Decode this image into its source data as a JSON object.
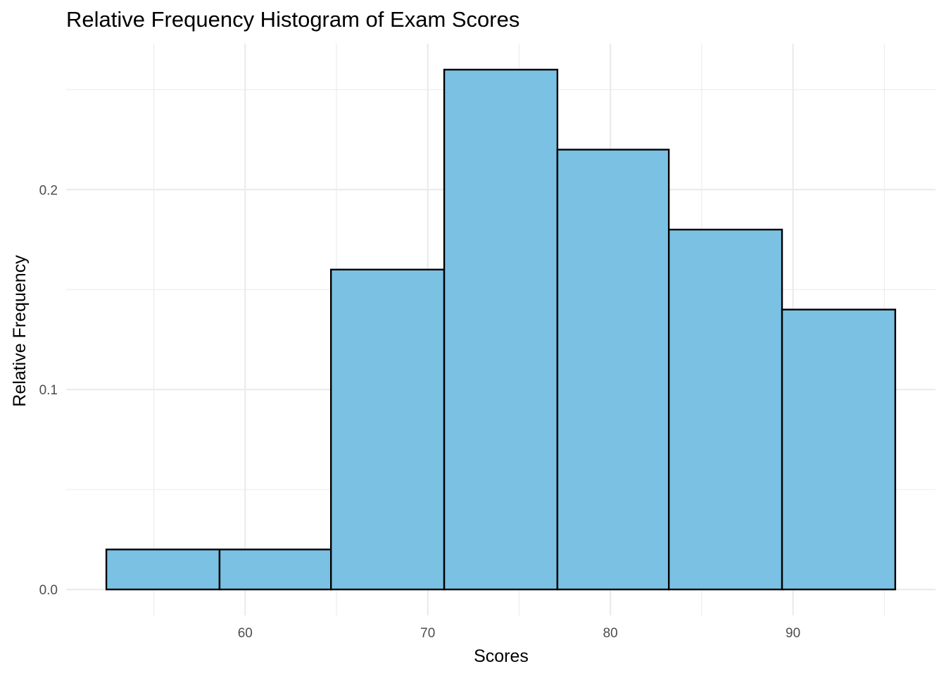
{
  "chart_data": {
    "type": "bar",
    "title": "Relative Frequency Histogram of Exam Scores",
    "xlabel": "Scores",
    "ylabel": "Relative Frequency",
    "bar_color": "#7AC1E4",
    "bar_edge_color": "#000000",
    "bins": [
      {
        "x0": 52.4,
        "x1": 58.6,
        "value": 0.02
      },
      {
        "x0": 58.6,
        "x1": 64.7,
        "value": 0.02
      },
      {
        "x0": 64.7,
        "x1": 70.9,
        "value": 0.16
      },
      {
        "x0": 70.9,
        "x1": 77.1,
        "value": 0.26
      },
      {
        "x0": 77.1,
        "x1": 83.2,
        "value": 0.22
      },
      {
        "x0": 83.2,
        "x1": 89.4,
        "value": 0.18
      },
      {
        "x0": 89.4,
        "x1": 95.6,
        "value": 0.14
      }
    ],
    "xlim": [
      50.2,
      97.8
    ],
    "ylim": [
      -0.013,
      0.273
    ],
    "x_major_ticks": [
      60,
      70,
      80,
      90
    ],
    "x_minor_ticks": [
      55,
      65,
      75,
      85,
      95
    ],
    "y_major_ticks": [
      0.0,
      0.1,
      0.2
    ],
    "y_minor_ticks": [
      0.05,
      0.15,
      0.25
    ],
    "x_tick_labels": [
      "60",
      "70",
      "80",
      "90"
    ],
    "y_tick_labels": [
      "0.0",
      "0.1",
      "0.2"
    ],
    "grid": true,
    "legend": "none"
  }
}
